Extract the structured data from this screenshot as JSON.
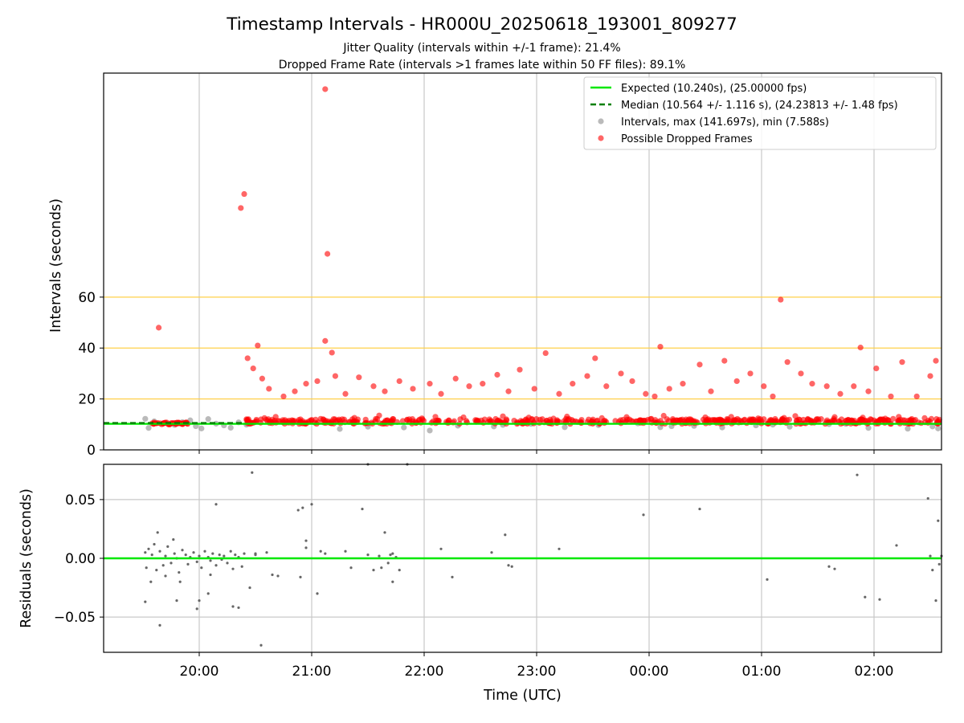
{
  "figure": {
    "title": "Timestamp Intervals - HR000U_20250618_193001_809277",
    "subtitle1": "Jitter Quality (intervals within +/-1 frame): 21.4%",
    "subtitle2": "Dropped Frame Rate (intervals >1 frames late within 50 FF files): 89.1%"
  },
  "colors": {
    "expected": "#00e800",
    "median": "#007f00",
    "intervals": "#8c8c8c",
    "dropped": "#ff0000",
    "reference_lines": "#ffd04a",
    "residuals": "#666666",
    "grid": "#c8c8c8"
  },
  "chart_data": [
    {
      "type": "scatter",
      "name": "intervals",
      "ylabel": "Intervals (seconds)",
      "xlim": [
        19.15,
        26.6
      ],
      "ylim": [
        0,
        148
      ],
      "yticks": [
        0,
        20,
        40,
        60
      ],
      "ytick_labels": [
        "0",
        "20",
        "40",
        "60"
      ],
      "grid": true,
      "legend_position": "top-right",
      "reference_lines": [
        20,
        40,
        60
      ],
      "expected": {
        "label": "Expected (10.240s), (25.00000 fps)",
        "value": 10.24
      },
      "median": {
        "label": "Median (10.564 +/- 1.116 s), (24.23813 +/- 1.48 fps)",
        "value": 10.564,
        "x_range": [
          19.15,
          20.4
        ]
      },
      "intervals_label": "Intervals, max (141.697s), min (7.588s)",
      "dropped_label": "Possible Dropped Frames",
      "intervals": {
        "x": [
          19.52,
          19.55,
          19.6,
          19.7,
          19.78,
          19.85,
          19.92,
          19.97,
          20.02,
          20.08,
          20.15,
          20.22,
          20.28,
          20.35,
          20.42,
          21.25,
          21.5,
          21.82,
          22.05,
          22.3,
          22.62,
          22.95,
          23.25,
          23.55,
          23.9,
          24.1,
          24.4,
          24.65,
          24.95,
          25.25,
          25.6,
          25.95,
          26.3,
          26.57,
          26.52,
          22.7,
          23.1,
          24.2,
          25.1,
          25.75
        ],
        "y": [
          12.2,
          8.6,
          11.2,
          10.5,
          9.8,
          10.9,
          11.6,
          9.3,
          8.4,
          12.1,
          10.3,
          9.6,
          8.7,
          10.8,
          9.9,
          8.2,
          9.1,
          8.8,
          7.6,
          9.5,
          9.2,
          10.2,
          8.9,
          9.7,
          10.4,
          8.9,
          9.4,
          8.8,
          9.6,
          9.1,
          10.1,
          8.6,
          8.3,
          8.4,
          9.2,
          9.8,
          10.6,
          9.3,
          9.9,
          10.2
        ]
      },
      "dropped_frames": {
        "x": [
          19.62,
          19.68,
          19.75,
          21.12,
          20.37,
          20.4,
          21.14,
          19.64,
          21.12,
          21.18,
          25.17,
          24.1,
          25.88,
          20.52,
          20.43,
          20.48,
          20.56,
          20.62,
          20.75,
          20.85,
          20.95,
          21.05,
          21.21,
          21.3,
          21.42,
          21.55,
          21.65,
          21.78,
          21.9,
          22.05,
          22.15,
          22.28,
          22.4,
          22.52,
          22.65,
          22.75,
          22.85,
          22.98,
          23.08,
          23.2,
          23.32,
          23.45,
          23.52,
          23.62,
          23.75,
          23.85,
          23.97,
          24.05,
          24.18,
          24.3,
          24.45,
          24.55,
          24.67,
          24.78,
          24.9,
          25.02,
          25.1,
          25.23,
          25.35,
          25.45,
          25.58,
          25.7,
          25.82,
          25.95,
          26.02,
          26.15,
          26.25,
          26.38,
          26.5,
          26.55,
          20.5,
          20.58,
          20.68,
          20.8,
          20.9,
          21.0,
          21.08,
          21.25,
          21.38,
          21.48,
          21.6,
          21.72,
          21.85,
          21.98,
          22.1,
          22.22,
          22.35,
          22.47,
          22.58,
          22.7,
          22.8,
          22.93,
          23.03,
          23.15,
          23.27,
          23.4,
          23.58,
          23.7,
          23.8,
          23.92,
          24.02,
          24.13,
          24.25,
          24.37,
          24.5,
          24.62,
          24.73,
          24.85,
          24.97,
          25.07,
          25.2,
          25.3,
          25.42,
          25.53,
          25.65,
          25.77,
          25.9,
          26.0,
          26.1,
          26.22,
          26.33,
          26.45,
          26.58
        ],
        "y": [
          10.4,
          10.3,
          10.5,
          141.7,
          95.0,
          100.5,
          77.0,
          48.0,
          42.8,
          38.2,
          59.0,
          40.5,
          40.2,
          41.0,
          36.0,
          32.0,
          28.0,
          24.0,
          21.0,
          23.0,
          26.0,
          27.0,
          29.0,
          22.0,
          28.5,
          25.0,
          23.0,
          27.0,
          24.0,
          26.0,
          22.0,
          28.0,
          25.0,
          26.0,
          29.5,
          23.0,
          31.5,
          24.0,
          38.0,
          22.0,
          26.0,
          29.0,
          36.0,
          25.0,
          30.0,
          27.0,
          22.0,
          21.0,
          24.0,
          26.0,
          33.5,
          23.0,
          35.0,
          27.0,
          30.0,
          25.0,
          21.0,
          34.5,
          30.0,
          26.0,
          25.0,
          22.0,
          25.0,
          23.0,
          32.0,
          21.0,
          34.5,
          21.0,
          29.0,
          35.0,
          11.0,
          12.5,
          13.0,
          11.5,
          12.0,
          11.8,
          12.2,
          11.4,
          12.6,
          11.9,
          13.5,
          12.1,
          11.7,
          12.4,
          13.0,
          11.6,
          12.8,
          11.3,
          12.0,
          13.2,
          11.5,
          12.7,
          11.9,
          12.3,
          13.1,
          11.8,
          12.5,
          11.4,
          12.9,
          11.7,
          12.2,
          13.4,
          11.6,
          12.0,
          12.8,
          11.5,
          13.0,
          11.9,
          12.4,
          11.3,
          12.6,
          13.3,
          11.8,
          12.1,
          12.9,
          11.4,
          12.7,
          11.6,
          12.3,
          13.0,
          11.7,
          12.5,
          11.9
        ]
      }
    },
    {
      "type": "scatter",
      "name": "residuals",
      "xlabel": "Time (UTC)",
      "ylabel": "Residuals (seconds)",
      "xlim": [
        19.15,
        26.6
      ],
      "ylim": [
        -0.08,
        0.08
      ],
      "yticks": [
        0.05,
        0.0,
        -0.05
      ],
      "ytick_labels": [
        "0.05",
        "0.00",
        "−0.05"
      ],
      "xticks": [
        20,
        21,
        22,
        23,
        24,
        25,
        26
      ],
      "xtick_labels": [
        "20:00",
        "21:00",
        "22:00",
        "23:00",
        "00:00",
        "01:00",
        "02:00"
      ],
      "grid": true,
      "zero_line": 0,
      "points": {
        "x": [
          19.52,
          19.53,
          19.55,
          19.58,
          19.6,
          19.62,
          19.65,
          19.68,
          19.7,
          19.72,
          19.75,
          19.78,
          19.8,
          19.82,
          19.85,
          19.88,
          19.9,
          19.92,
          19.95,
          19.98,
          20.0,
          20.02,
          20.05,
          20.08,
          20.1,
          20.12,
          20.15,
          20.18,
          20.2,
          20.22,
          20.25,
          20.28,
          20.3,
          20.32,
          20.35,
          20.38,
          20.4,
          19.57,
          19.63,
          19.7,
          19.77,
          19.83,
          19.98,
          20.08,
          20.15,
          20.3,
          20.47,
          20.5,
          20.55,
          20.6,
          20.65,
          20.7,
          20.88,
          20.9,
          20.92,
          20.95,
          21.0,
          21.08,
          21.12,
          21.3,
          21.35,
          21.45,
          21.5,
          21.55,
          21.6,
          21.62,
          21.65,
          21.68,
          21.7,
          21.72,
          21.75,
          21.78,
          21.85,
          22.15,
          22.25,
          22.6,
          22.72,
          22.75,
          22.78,
          23.2,
          23.95,
          24.45,
          25.05,
          25.6,
          25.65,
          25.85,
          25.92,
          26.05,
          26.2,
          26.48,
          26.5,
          26.52,
          26.55,
          26.57,
          26.58,
          26.6,
          20.45,
          20.5,
          20.95,
          21.05,
          21.5,
          21.72,
          19.52,
          19.65,
          19.8,
          20.0,
          20.1,
          20.35
        ],
        "y": [
          0.005,
          -0.008,
          0.008,
          0.003,
          0.012,
          -0.01,
          0.006,
          -0.006,
          0.002,
          0.01,
          -0.004,
          0.004,
          0.0,
          -0.012,
          0.007,
          0.003,
          -0.005,
          0.001,
          0.005,
          -0.003,
          0.002,
          -0.008,
          0.006,
          0.001,
          -0.002,
          0.004,
          -0.006,
          0.003,
          -0.001,
          0.002,
          -0.004,
          0.006,
          -0.009,
          0.003,
          0.001,
          -0.007,
          0.004,
          -0.02,
          0.022,
          -0.015,
          0.016,
          -0.02,
          -0.043,
          -0.03,
          0.046,
          -0.041,
          0.073,
          0.004,
          -0.074,
          0.005,
          -0.014,
          -0.015,
          0.041,
          -0.016,
          0.043,
          0.009,
          0.046,
          0.006,
          0.004,
          0.006,
          -0.008,
          0.042,
          0.003,
          -0.01,
          0.002,
          -0.008,
          0.022,
          -0.004,
          0.003,
          -0.02,
          0.001,
          -0.01,
          0.08,
          0.008,
          -0.016,
          0.005,
          0.02,
          -0.006,
          -0.007,
          0.008,
          0.037,
          0.042,
          -0.018,
          -0.007,
          -0.009,
          0.071,
          -0.033,
          -0.035,
          0.011,
          0.051,
          0.002,
          -0.01,
          -0.036,
          0.032,
          -0.005,
          0.002,
          -0.025,
          0.003,
          0.015,
          -0.03,
          0.08,
          0.004,
          -0.037,
          -0.057,
          -0.036,
          -0.036,
          -0.014,
          -0.042
        ]
      }
    }
  ]
}
